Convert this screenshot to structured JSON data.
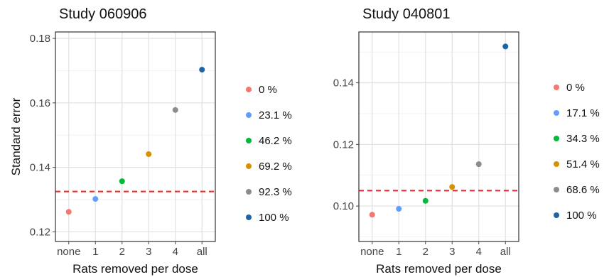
{
  "chart_data": [
    {
      "type": "scatter",
      "title": "Study 060906",
      "xlabel": "Rats removed per dose",
      "ylabel": "Standard error",
      "categories": [
        "none",
        "1",
        "2",
        "3",
        "4",
        "all"
      ],
      "ylim": [
        0.117,
        0.182
      ],
      "yticks": [
        0.12,
        0.14,
        0.16,
        0.18
      ],
      "ytick_labels": [
        "0.12",
        "0.14",
        "0.16",
        "0.18"
      ],
      "reference_line": {
        "y": 0.1325,
        "style": "dashed",
        "color": "#ee2222"
      },
      "grid": true,
      "legend_position": "right",
      "series": [
        {
          "name": "0 %",
          "color": "#f8766d",
          "x": "none",
          "y": 0.1262
        },
        {
          "name": "23.1 %",
          "color": "#619cff",
          "x": "1",
          "y": 0.1302
        },
        {
          "name": "46.2 %",
          "color": "#00ba38",
          "x": "2",
          "y": 0.1357
        },
        {
          "name": "69.2 %",
          "color": "#d89000",
          "x": "3",
          "y": 0.1441
        },
        {
          "name": "92.3 %",
          "color": "#8c8c8c",
          "x": "4",
          "y": 0.1578
        },
        {
          "name": "100 %",
          "color": "#1b65a6",
          "x": "all",
          "y": 0.1703
        }
      ]
    },
    {
      "type": "scatter",
      "title": "Study 040801",
      "xlabel": "Rats removed per dose",
      "ylabel": "",
      "categories": [
        "none",
        "1",
        "2",
        "3",
        "4",
        "all"
      ],
      "ylim": [
        0.0885,
        0.1565
      ],
      "yticks": [
        0.1,
        0.12,
        0.14
      ],
      "ytick_labels": [
        "0.10",
        "0.12",
        "0.14"
      ],
      "reference_line": {
        "y": 0.105,
        "style": "dashed",
        "color": "#ee2222"
      },
      "grid": true,
      "legend_position": "right",
      "series": [
        {
          "name": "0 %",
          "color": "#f8766d",
          "x": "none",
          "y": 0.0972
        },
        {
          "name": "17.1 %",
          "color": "#619cff",
          "x": "1",
          "y": 0.0991
        },
        {
          "name": "34.3 %",
          "color": "#00ba38",
          "x": "2",
          "y": 0.1017
        },
        {
          "name": "51.4 %",
          "color": "#d89000",
          "x": "3",
          "y": 0.1062
        },
        {
          "name": "68.6 %",
          "color": "#8c8c8c",
          "x": "4",
          "y": 0.1136
        },
        {
          "name": "100 %",
          "color": "#1b65a6",
          "x": "all",
          "y": 0.1518
        }
      ]
    }
  ]
}
